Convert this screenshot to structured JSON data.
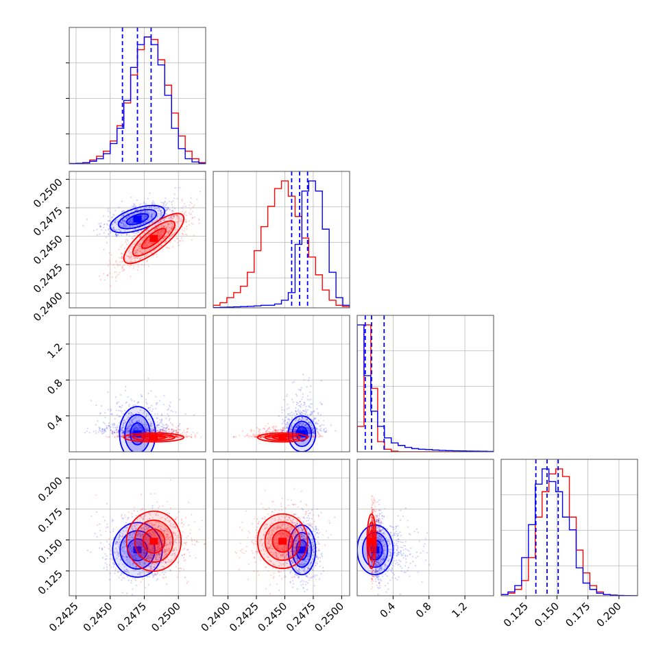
{
  "chart_data": {
    "type": "corner",
    "colors": {
      "blue": "#0000ff",
      "red": "#ff0000"
    },
    "grid": true,
    "parameters": [
      {
        "range": [
          0.242,
          0.252
        ],
        "ticks": [
          0.2425,
          0.245,
          0.2475,
          0.25
        ],
        "tick_labels": [
          "0.2425",
          "0.2450",
          "0.2475",
          "0.2500"
        ]
      },
      {
        "range": [
          0.2387,
          0.2507
        ],
        "ticks": [
          0.24,
          0.2425,
          0.245,
          0.2475,
          0.25
        ],
        "tick_labels": [
          "0.2400",
          "0.2425",
          "0.2450",
          "0.2475",
          "0.2500"
        ]
      },
      {
        "range": [
          0.0,
          1.52
        ],
        "ticks": [
          0.4,
          0.8,
          1.2
        ],
        "tick_labels": [
          "0.4",
          "0.8",
          "1.2"
        ]
      },
      {
        "range": [
          0.105,
          0.215
        ],
        "ticks": [
          0.125,
          0.15,
          0.175,
          0.2
        ],
        "tick_labels": [
          "0.125",
          "0.150",
          "0.175",
          "0.200"
        ]
      }
    ],
    "series": [
      {
        "color": "blue",
        "means": [
          0.247,
          0.2465,
          0.2,
          0.142
        ],
        "stds": [
          0.001,
          0.0006,
          0.1,
          0.01
        ],
        "quantiles": [
          [
            0.2459,
            0.247,
            0.248
          ],
          [
            0.2456,
            0.2463,
            0.247
          ],
          [
            0.09,
            0.16,
            0.3
          ],
          [
            0.133,
            0.142,
            0.151
          ]
        ],
        "hist": [
          [
            0.002,
            0.004,
            0.008,
            0.02,
            0.04,
            0.08,
            0.16,
            0.28,
            0.5,
            0.76,
            0.94,
            1.0,
            0.94,
            0.78,
            0.54,
            0.28,
            0.12,
            0.04,
            0.015,
            0.005
          ],
          [
            0.002,
            0.004,
            0.006,
            0.008,
            0.01,
            0.012,
            0.015,
            0.02,
            0.02,
            0.03,
            0.06,
            0.12,
            0.5,
            0.92,
            1.0,
            0.92,
            0.62,
            0.28,
            0.08,
            0.02
          ],
          [
            1.0,
            0.6,
            0.32,
            0.2,
            0.11,
            0.07,
            0.05,
            0.035,
            0.025,
            0.02,
            0.018,
            0.014,
            0.011,
            0.009,
            0.008,
            0.007,
            0.006,
            0.005,
            0.004,
            0.003
          ],
          [
            0.01,
            0.03,
            0.08,
            0.3,
            0.56,
            0.88,
            1.0,
            0.9,
            0.82,
            0.62,
            0.52,
            0.22,
            0.1,
            0.05,
            0.02,
            0.01,
            0.005,
            0.002,
            0.001,
            0.0
          ]
        ]
      },
      {
        "color": "red",
        "means": [
          0.2482,
          0.2448,
          0.16,
          0.149
        ],
        "stds": [
          0.0011,
          0.0011,
          0.025,
          0.011
        ],
        "quantiles": [],
        "hist": [
          [
            0.002,
            0.004,
            0.01,
            0.03,
            0.06,
            0.1,
            0.18,
            0.3,
            0.48,
            0.7,
            0.9,
            1.0,
            0.98,
            0.82,
            0.62,
            0.4,
            0.22,
            0.1,
            0.04,
            0.01
          ],
          [
            0.02,
            0.04,
            0.08,
            0.12,
            0.17,
            0.28,
            0.45,
            0.64,
            0.8,
            0.94,
            1.0,
            0.88,
            0.72,
            0.55,
            0.4,
            0.26,
            0.14,
            0.06,
            0.02,
            0.01
          ],
          [
            0.2,
            1.0,
            0.5,
            0.08,
            0.02,
            0.005,
            0.0,
            0.0,
            0.0,
            0.0,
            0.0,
            0.0,
            0.0,
            0.0,
            0.0,
            0.0,
            0.0,
            0.0,
            0.0,
            0.0
          ],
          [
            0.01,
            0.02,
            0.05,
            0.12,
            0.3,
            0.62,
            0.82,
            0.96,
            1.0,
            0.94,
            0.62,
            0.36,
            0.18,
            0.08,
            0.03,
            0.01,
            0.005,
            0.002,
            0.001,
            0.0
          ]
        ]
      }
    ],
    "pair_correlations": {
      "blue": {
        "1_0": 0.55,
        "2_0": 0.0,
        "2_1": 0.0,
        "3_0": 0.0,
        "3_1": 0.0,
        "3_2": 0.0
      },
      "red": {
        "1_0": 0.8,
        "2_0": 0.0,
        "2_1": 0.0,
        "3_0": 0.0,
        "3_1": 0.0,
        "3_2": 0.0
      }
    }
  }
}
